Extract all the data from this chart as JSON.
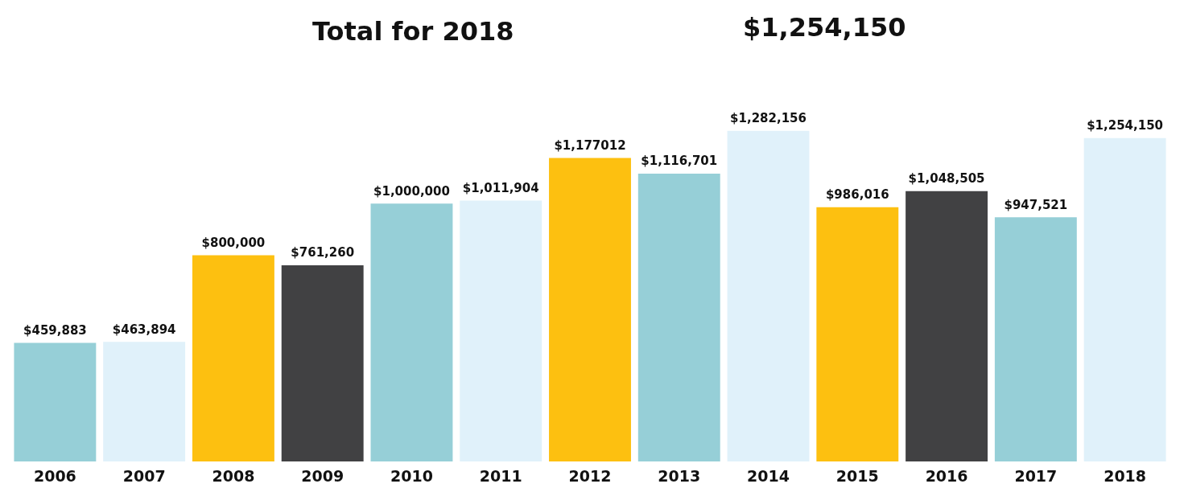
{
  "chart_data": {
    "type": "bar",
    "title": "Total for 2018",
    "annotations": [
      "$1,254,150"
    ],
    "categories": [
      "2006",
      "2007",
      "2008",
      "2009",
      "2010",
      "2011",
      "2012",
      "2013",
      "2014",
      "2015",
      "2016",
      "2017",
      "2018"
    ],
    "values": [
      459883,
      463894,
      800000,
      761260,
      1000000,
      1011904,
      1177012,
      1116701,
      1282156,
      986016,
      1048505,
      947521,
      1254150
    ],
    "value_labels": [
      "$459,883",
      "$463,894",
      "$800,000",
      "$761,260",
      "$1,000,000",
      "$1,011,904",
      "$1,177012",
      "$1,116,701",
      "$1,282,156",
      "$986,016",
      "$1,048,505",
      "$947,521",
      "$1,254,150"
    ],
    "colors": [
      "#96cfd7",
      "#e0f1fa",
      "#fdc010",
      "#414143",
      "#96cfd7",
      "#e0f1fa",
      "#fdc010",
      "#96cfd7",
      "#e0f1fa",
      "#fdc010",
      "#414143",
      "#96cfd7",
      "#e0f1fa"
    ],
    "tick_labels": "x"
  }
}
